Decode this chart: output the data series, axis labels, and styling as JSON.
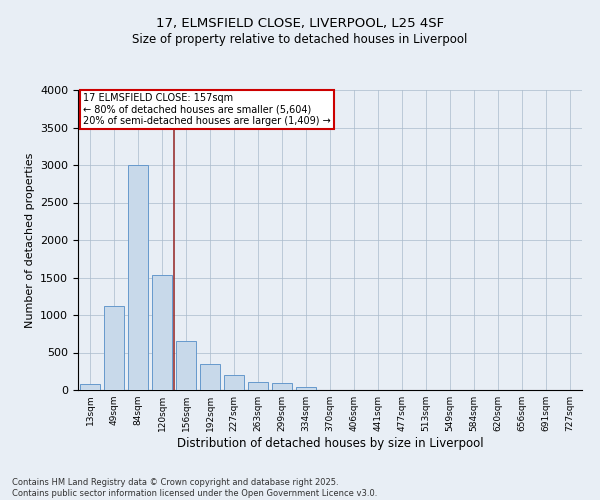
{
  "title1": "17, ELMSFIELD CLOSE, LIVERPOOL, L25 4SF",
  "title2": "Size of property relative to detached houses in Liverpool",
  "xlabel": "Distribution of detached houses by size in Liverpool",
  "ylabel": "Number of detached properties",
  "categories": [
    "13sqm",
    "49sqm",
    "84sqm",
    "120sqm",
    "156sqm",
    "192sqm",
    "227sqm",
    "263sqm",
    "299sqm",
    "334sqm",
    "370sqm",
    "406sqm",
    "441sqm",
    "477sqm",
    "513sqm",
    "549sqm",
    "584sqm",
    "620sqm",
    "656sqm",
    "691sqm",
    "727sqm"
  ],
  "values": [
    75,
    1120,
    3000,
    1540,
    650,
    345,
    200,
    110,
    95,
    35,
    0,
    0,
    0,
    0,
    0,
    0,
    0,
    0,
    0,
    0,
    0
  ],
  "bar_color": "#c8d9ea",
  "bar_edge_color": "#6699cc",
  "vline_x": 3.5,
  "vline_color": "#993333",
  "annotation_title": "17 ELMSFIELD CLOSE: 157sqm",
  "annotation_line1": "← 80% of detached houses are smaller (5,604)",
  "annotation_line2": "20% of semi-detached houses are larger (1,409) →",
  "annotation_box_color": "#ffffff",
  "annotation_box_edge": "#cc0000",
  "ylim": [
    0,
    4000
  ],
  "yticks": [
    0,
    500,
    1000,
    1500,
    2000,
    2500,
    3000,
    3500,
    4000
  ],
  "bg_color": "#e8eef5",
  "plot_bg_color": "#e8eef5",
  "footer1": "Contains HM Land Registry data © Crown copyright and database right 2025.",
  "footer2": "Contains public sector information licensed under the Open Government Licence v3.0."
}
